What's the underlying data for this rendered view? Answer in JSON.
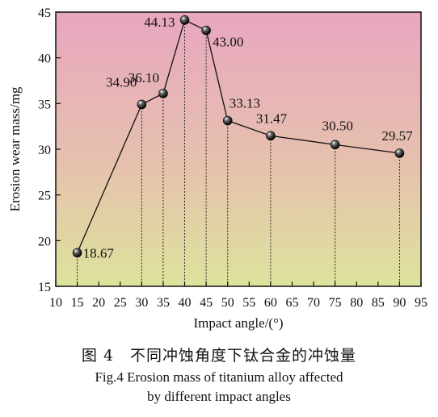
{
  "chart_data": {
    "type": "line",
    "xlabel": "Impact angle/(°)",
    "ylabel": "Erosion wear mass/mg",
    "xlim": [
      10,
      95
    ],
    "ylim": [
      15,
      45
    ],
    "xticks": [
      10,
      15,
      20,
      25,
      30,
      35,
      40,
      45,
      50,
      55,
      60,
      65,
      70,
      75,
      80,
      85,
      90,
      95
    ],
    "yticks": [
      15,
      20,
      25,
      30,
      35,
      40,
      45
    ],
    "grid": false,
    "marker": "sphere",
    "background": "vertical gradient from pink (top) to yellow-green (bottom)",
    "drop_lines": "dotted vertical lines from each point to the x-axis",
    "series": [
      {
        "x": [
          15,
          30,
          35,
          40,
          45,
          50,
          60,
          75,
          90
        ],
        "y": [
          18.67,
          34.9,
          36.1,
          44.13,
          43.0,
          33.13,
          31.47,
          30.5,
          29.57
        ],
        "point_labels": [
          "18.67",
          "34.90",
          "36.10",
          "44.13",
          "43.00",
          "33.13",
          "31.47",
          "30.50",
          "29.57"
        ]
      }
    ],
    "colors": {
      "bg_top": "#e8a6c0",
      "bg_bottom": "#dde39c",
      "line": "#111111",
      "marker": "#111111"
    }
  },
  "caption": {
    "cn": "图 4　不同冲蚀角度下钛合金的冲蚀量",
    "en_line1": "Fig.4 Erosion mass of titanium alloy affected",
    "en_line2": "by different impact angles"
  }
}
